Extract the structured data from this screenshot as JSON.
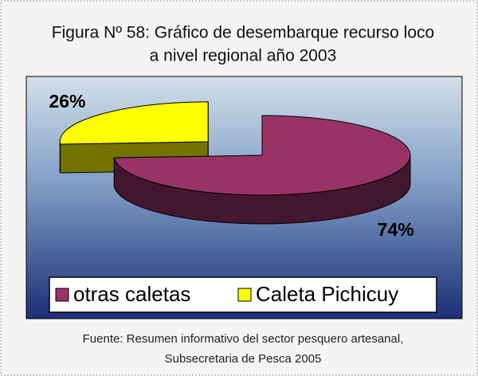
{
  "chart_data": {
    "type": "pie",
    "title": [
      "Figura Nº 58:  Gráfico de desembarque recurso loco",
      "a nivel regional año 2003"
    ],
    "categories": [
      "otras caletas",
      "Caleta Pichicuy"
    ],
    "values": [
      74,
      26
    ],
    "value_labels": [
      "74%",
      "26%"
    ],
    "colors": [
      "#993366",
      "#ffff00"
    ],
    "source": [
      "Fuente: Resumen informativo del sector pesquero artesanal,",
      "Subsecretaria de Pesca 2005"
    ],
    "legend": "bottom"
  }
}
